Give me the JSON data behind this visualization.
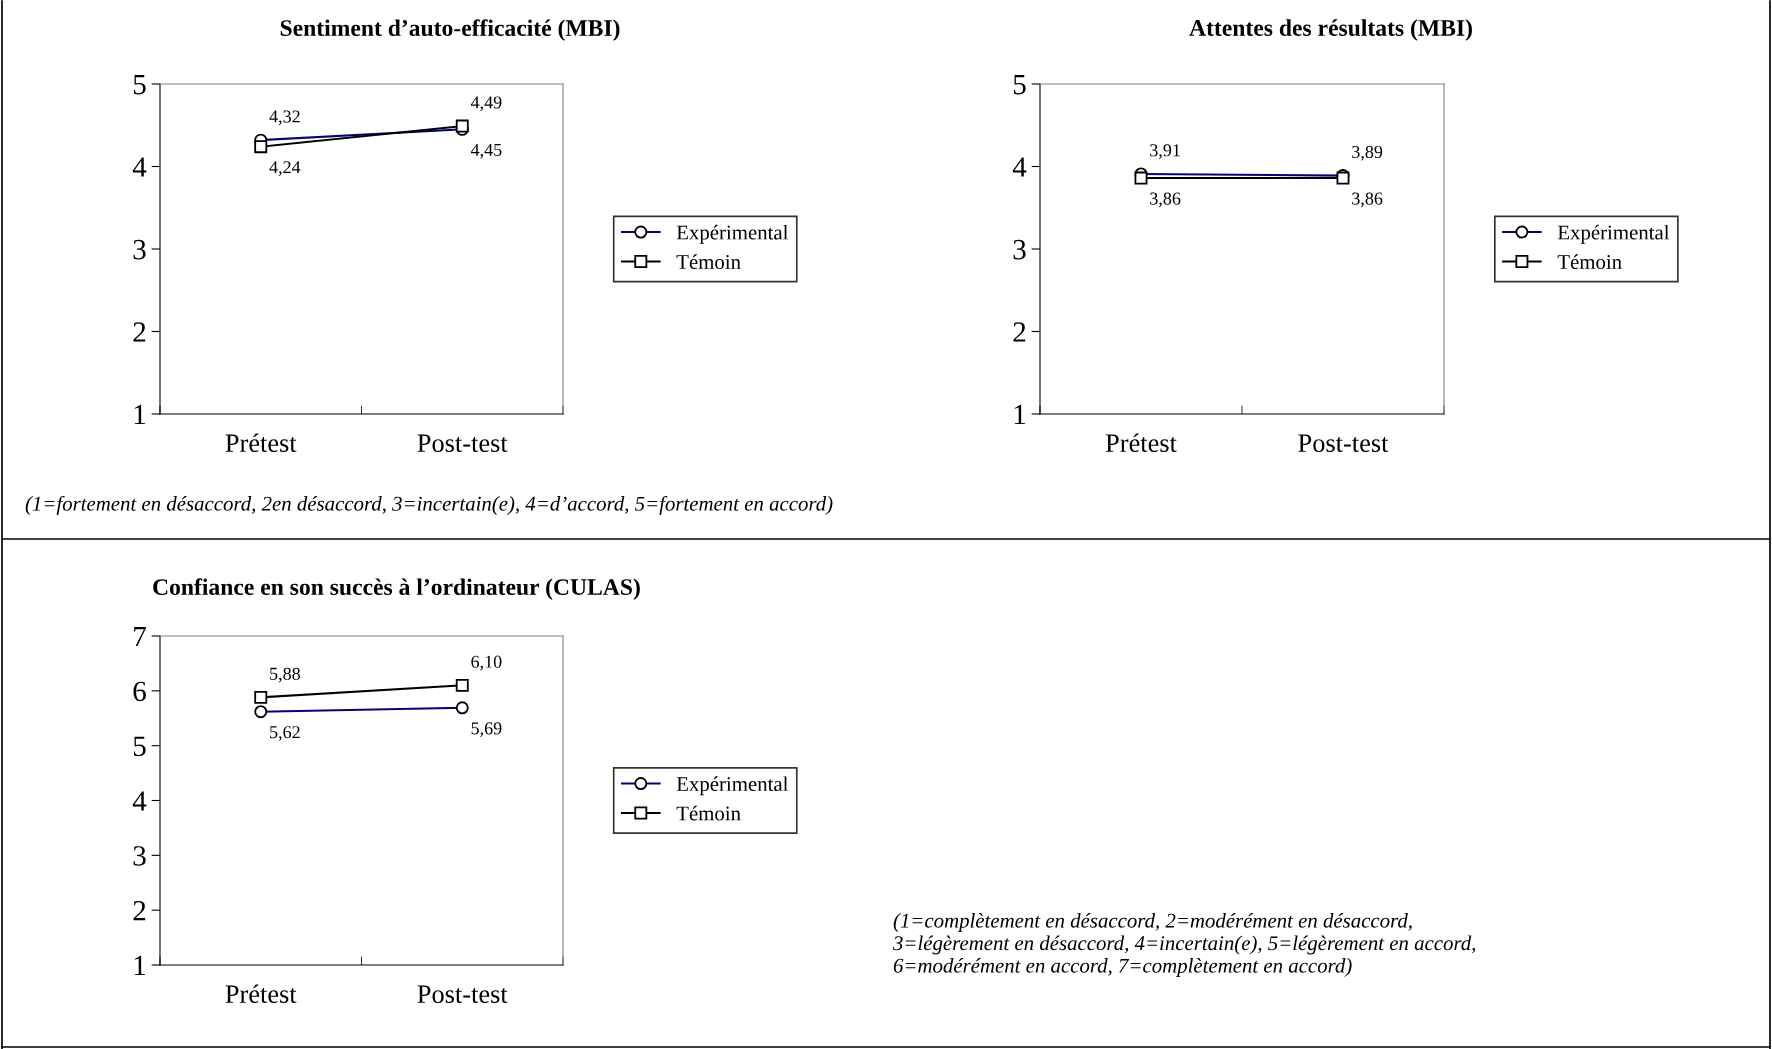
{
  "chart_data": [
    {
      "type": "line",
      "title": "Sentiment d’auto-efficacité (MBI)",
      "categories": [
        "Prétest",
        "Post-test"
      ],
      "series": [
        {
          "name": "Expérimental",
          "color": "#000080",
          "marker": "circle",
          "values": [
            4.32,
            4.45
          ],
          "value_labels": [
            "4,32",
            "4,45"
          ]
        },
        {
          "name": "Témoin",
          "color": "#000000",
          "marker": "square",
          "values": [
            4.24,
            4.49
          ],
          "value_labels": [
            "4,24",
            "4,49"
          ]
        }
      ],
      "ylim": [
        1,
        5
      ],
      "yticks": [
        1,
        2,
        3,
        4,
        5
      ],
      "grid": false,
      "legend": "right",
      "annotations": [
        "(1=fortement en désaccord, 2en désaccord, 3=incertain(e), 4=d’accord, 5=fortement en accord)"
      ]
    },
    {
      "type": "line",
      "title": "Attentes des résultats (MBI)",
      "categories": [
        "Prétest",
        "Post-test"
      ],
      "series": [
        {
          "name": "Expérimental",
          "color": "#000080",
          "marker": "circle",
          "values": [
            3.91,
            3.89
          ],
          "value_labels": [
            "3,91",
            "3,89"
          ]
        },
        {
          "name": "Témoin",
          "color": "#000000",
          "marker": "square",
          "values": [
            3.86,
            3.86
          ],
          "value_labels": [
            "3,86",
            "3,86"
          ]
        }
      ],
      "ylim": [
        1,
        5
      ],
      "yticks": [
        1,
        2,
        3,
        4,
        5
      ],
      "grid": false,
      "legend": "right"
    },
    {
      "type": "line",
      "title": "Confiance en son succès à l’ordinateur (CULAS)",
      "categories": [
        "Prétest",
        "Post-test"
      ],
      "series": [
        {
          "name": "Expérimental",
          "color": "#000080",
          "marker": "circle",
          "values": [
            5.62,
            5.69
          ],
          "value_labels": [
            "5,62",
            "5,69"
          ]
        },
        {
          "name": "Témoin",
          "color": "#000000",
          "marker": "square",
          "values": [
            5.88,
            6.1
          ],
          "value_labels": [
            "5,88",
            "6,10"
          ]
        }
      ],
      "ylim": [
        1,
        7
      ],
      "yticks": [
        1,
        2,
        3,
        4,
        5,
        6,
        7
      ],
      "grid": false,
      "legend": "right",
      "annotations": [
        "(1=complètement en désaccord, 2=modérément en désaccord,\n3=légèrement en désaccord, 4=incertain(e), 5=légèrement en accord,\n6=modérément en accord, 7=complètement en accord)"
      ]
    }
  ]
}
